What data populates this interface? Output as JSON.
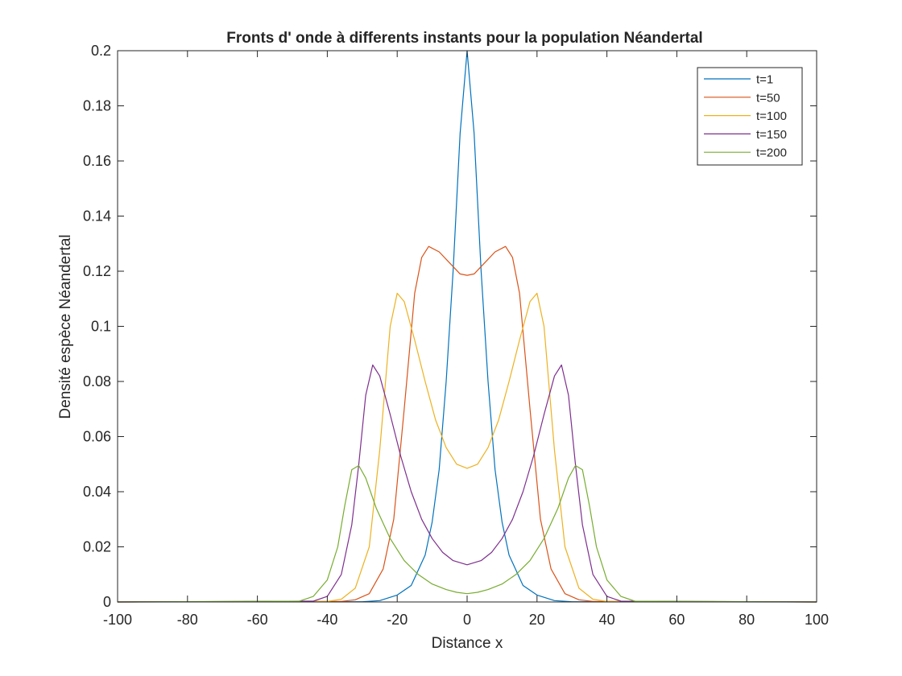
{
  "chart_data": {
    "type": "line",
    "title": "Fronts d' onde à differents instants pour la population Néandertal",
    "xlabel": "Distance x",
    "ylabel": "Densité espèce Néandertal",
    "xlim": [
      -100,
      100
    ],
    "ylim": [
      0,
      0.2
    ],
    "xticks": [
      "-100",
      "-80",
      "-60",
      "-40",
      "-20",
      "0",
      "20",
      "40",
      "60",
      "80",
      "100"
    ],
    "yticks": [
      "0",
      "0.02",
      "0.04",
      "0.06",
      "0.08",
      "0.1",
      "0.12",
      "0.14",
      "0.16",
      "0.18",
      "0.2"
    ],
    "grid": false,
    "legend_position": "top-right",
    "series": [
      {
        "name": "t=1",
        "color": "#0072BD",
        "x": [
          -100,
          -30,
          -25,
          -20,
          -16,
          -12,
          -10,
          -8,
          -6,
          -4,
          -2,
          0,
          2,
          4,
          6,
          8,
          10,
          12,
          16,
          20,
          25,
          30,
          100
        ],
        "y": [
          0,
          0.0001,
          0.0005,
          0.0025,
          0.006,
          0.017,
          0.029,
          0.048,
          0.08,
          0.12,
          0.17,
          0.2,
          0.17,
          0.12,
          0.08,
          0.048,
          0.029,
          0.017,
          0.006,
          0.0025,
          0.0005,
          0.0001,
          0
        ]
      },
      {
        "name": "t=50",
        "color": "#D95319",
        "x": [
          -100,
          -36,
          -32,
          -28,
          -24,
          -21,
          -18,
          -15,
          -13,
          -11,
          -8,
          -5,
          -2,
          0,
          2,
          5,
          8,
          11,
          13,
          15,
          18,
          21,
          24,
          28,
          32,
          36,
          100
        ],
        "y": [
          0,
          0.0002,
          0.0008,
          0.003,
          0.012,
          0.03,
          0.07,
          0.112,
          0.125,
          0.129,
          0.127,
          0.123,
          0.119,
          0.1185,
          0.119,
          0.123,
          0.127,
          0.129,
          0.125,
          0.112,
          0.07,
          0.03,
          0.012,
          0.003,
          0.0008,
          0.0002,
          0
        ]
      },
      {
        "name": "t=100",
        "color": "#EDB120",
        "x": [
          -100,
          -40,
          -36,
          -32,
          -28,
          -25,
          -22,
          -20,
          -18,
          -15,
          -12,
          -9,
          -6,
          -3,
          0,
          3,
          6,
          9,
          12,
          15,
          18,
          20,
          22,
          25,
          28,
          32,
          36,
          40,
          100
        ],
        "y": [
          0,
          0.0002,
          0.001,
          0.005,
          0.02,
          0.055,
          0.1,
          0.112,
          0.109,
          0.095,
          0.08,
          0.066,
          0.056,
          0.05,
          0.0485,
          0.05,
          0.056,
          0.066,
          0.08,
          0.095,
          0.109,
          0.112,
          0.1,
          0.055,
          0.02,
          0.005,
          0.001,
          0.0002,
          0
        ]
      },
      {
        "name": "t=150",
        "color": "#7E2F8E",
        "x": [
          -100,
          -44,
          -40,
          -36,
          -33,
          -31,
          -29,
          -27,
          -25,
          -22,
          -19,
          -16,
          -13,
          -10,
          -7,
          -4,
          0,
          4,
          7,
          10,
          13,
          16,
          19,
          22,
          25,
          27,
          29,
          31,
          33,
          36,
          40,
          44,
          100
        ],
        "y": [
          0,
          0.0003,
          0.002,
          0.01,
          0.028,
          0.05,
          0.075,
          0.086,
          0.082,
          0.068,
          0.053,
          0.04,
          0.03,
          0.023,
          0.018,
          0.015,
          0.0135,
          0.015,
          0.018,
          0.023,
          0.03,
          0.04,
          0.053,
          0.068,
          0.082,
          0.086,
          0.075,
          0.05,
          0.028,
          0.01,
          0.002,
          0.0003,
          0
        ]
      },
      {
        "name": "t=200",
        "color": "#77AC30",
        "x": [
          -100,
          -48,
          -44,
          -40,
          -37,
          -35,
          -33,
          -31,
          -29,
          -26,
          -22,
          -18,
          -14,
          -10,
          -6,
          -3,
          0,
          3,
          6,
          10,
          14,
          18,
          22,
          26,
          29,
          31,
          33,
          35,
          37,
          40,
          44,
          48,
          100
        ],
        "y": [
          0,
          0.0003,
          0.002,
          0.008,
          0.02,
          0.035,
          0.048,
          0.0495,
          0.045,
          0.034,
          0.023,
          0.015,
          0.01,
          0.0065,
          0.0045,
          0.0035,
          0.003,
          0.0035,
          0.0045,
          0.0065,
          0.01,
          0.015,
          0.023,
          0.034,
          0.045,
          0.0495,
          0.048,
          0.035,
          0.02,
          0.008,
          0.002,
          0.0003,
          0
        ]
      }
    ]
  }
}
